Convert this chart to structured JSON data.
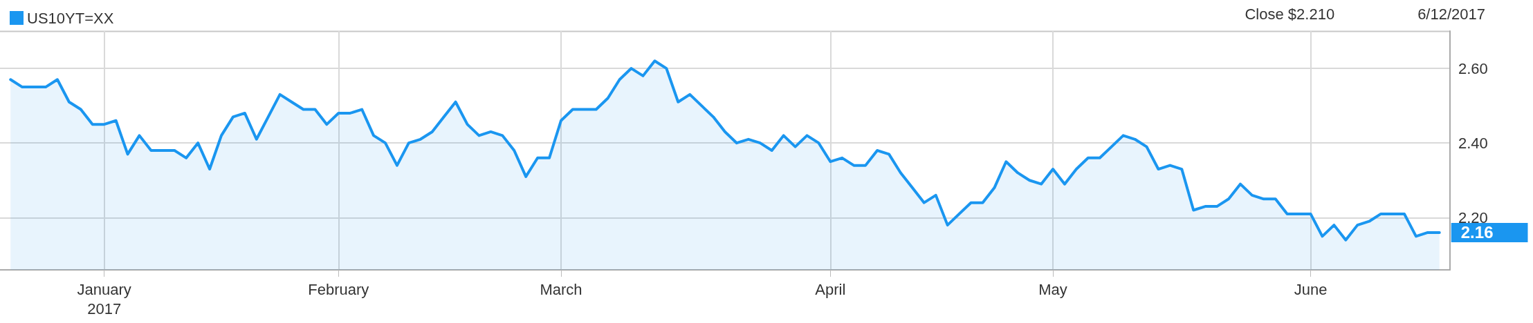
{
  "chart_data": {
    "type": "area",
    "categories": [
      null,
      null,
      null,
      null,
      null,
      null,
      null,
      null,
      "January\n2017",
      null,
      null,
      null,
      null,
      null,
      null,
      null,
      null,
      null,
      null,
      null,
      null,
      null,
      null,
      null,
      null,
      null,
      null,
      null,
      "February",
      null,
      null,
      null,
      null,
      null,
      null,
      null,
      null,
      null,
      null,
      null,
      null,
      null,
      null,
      null,
      null,
      null,
      null,
      "March",
      null,
      null,
      null,
      null,
      null,
      null,
      null,
      null,
      null,
      null,
      null,
      null,
      null,
      null,
      null,
      null,
      null,
      null,
      null,
      null,
      null,
      null,
      "April",
      null,
      null,
      null,
      null,
      null,
      null,
      null,
      null,
      null,
      null,
      null,
      null,
      null,
      null,
      null,
      null,
      null,
      null,
      "May",
      null,
      null,
      null,
      null,
      null,
      null,
      null,
      null,
      null,
      null,
      null,
      null,
      null,
      null,
      null,
      null,
      null,
      null,
      null,
      null,
      null,
      "June",
      null,
      null,
      null,
      null,
      null,
      null,
      null,
      null,
      null,
      null,
      null
    ],
    "series": [
      {
        "name": "US10YT=XX",
        "color": "#1a96f0",
        "values": [
          2.57,
          2.55,
          2.55,
          2.55,
          2.57,
          2.51,
          2.49,
          2.45,
          2.45,
          2.46,
          2.37,
          2.42,
          2.38,
          2.38,
          2.38,
          2.36,
          2.4,
          2.33,
          2.42,
          2.47,
          2.48,
          2.41,
          2.47,
          2.53,
          2.51,
          2.49,
          2.49,
          2.45,
          2.48,
          2.48,
          2.49,
          2.42,
          2.4,
          2.34,
          2.4,
          2.41,
          2.43,
          2.47,
          2.51,
          2.45,
          2.42,
          2.43,
          2.42,
          2.38,
          2.31,
          2.36,
          2.36,
          2.46,
          2.49,
          2.49,
          2.49,
          2.52,
          2.57,
          2.6,
          2.58,
          2.62,
          2.6,
          2.51,
          2.53,
          2.5,
          2.47,
          2.43,
          2.4,
          2.41,
          2.4,
          2.38,
          2.42,
          2.39,
          2.42,
          2.4,
          2.35,
          2.36,
          2.34,
          2.34,
          2.38,
          2.37,
          2.32,
          2.28,
          2.24,
          2.26,
          2.18,
          2.21,
          2.24,
          2.24,
          2.28,
          2.35,
          2.32,
          2.3,
          2.29,
          2.33,
          2.29,
          2.33,
          2.36,
          2.36,
          2.39,
          2.42,
          2.41,
          2.39,
          2.33,
          2.34,
          2.33,
          2.22,
          2.23,
          2.23,
          2.25,
          2.29,
          2.26,
          2.25,
          2.25,
          2.21,
          2.21,
          2.21,
          2.15,
          2.18,
          2.14,
          2.18,
          2.19,
          2.21,
          2.21,
          2.21,
          2.15,
          2.16,
          2.16
        ],
        "value_labels": [
          null,
          null,
          null,
          null,
          null,
          null,
          null,
          null,
          null,
          null,
          null,
          null,
          null,
          null,
          null,
          null,
          null,
          null,
          null,
          null,
          null,
          null,
          null,
          null,
          null,
          null,
          null,
          null,
          null,
          null,
          null,
          null,
          null,
          null,
          null,
          null,
          null,
          null,
          null,
          null,
          null,
          null,
          null,
          null,
          null,
          null,
          null,
          null,
          null,
          null,
          null,
          null,
          null,
          null,
          null,
          null,
          null,
          null,
          null,
          null,
          null,
          null,
          null,
          null,
          null,
          null,
          null,
          null,
          null,
          null,
          null,
          null,
          null,
          null,
          null,
          null,
          null,
          null,
          null,
          null,
          null,
          null,
          null,
          null,
          null,
          null,
          null,
          null,
          null,
          null,
          null,
          null,
          null,
          null,
          null,
          null,
          null,
          null,
          null,
          null,
          null,
          null,
          null,
          null,
          null,
          null,
          null,
          null,
          null,
          null,
          null,
          null,
          null,
          null,
          null,
          null,
          null,
          null,
          null,
          null,
          null,
          null,
          "2.16"
        ]
      }
    ],
    "ylim": [
      2.06,
      2.7
    ],
    "yticks": [
      {
        "value": 2.2,
        "label": "2.20"
      },
      {
        "value": 2.4,
        "label": "2.40"
      },
      {
        "value": 2.6,
        "label": "2.60"
      }
    ],
    "grid": true,
    "legend": "top left",
    "annotations": [
      "Close $2.210",
      "6/12/2017"
    ]
  }
}
